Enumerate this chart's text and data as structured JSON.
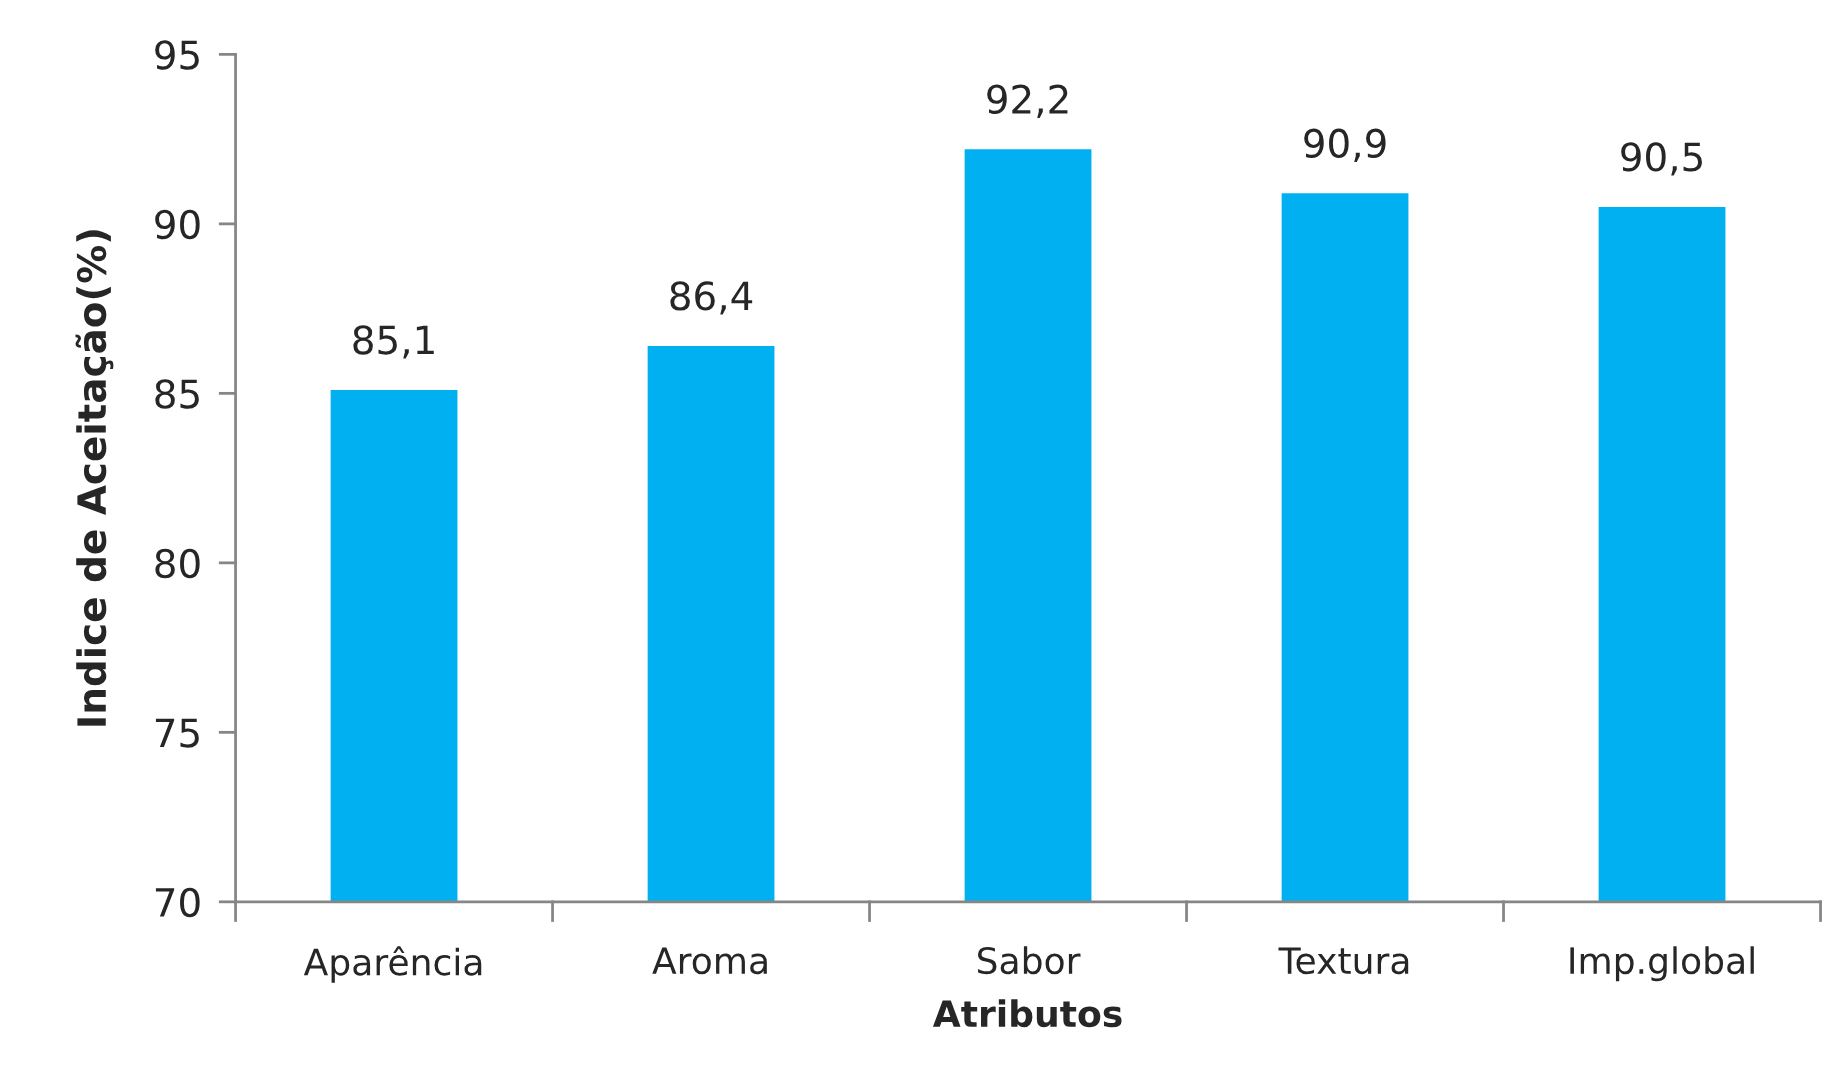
{
  "chart_data": {
    "type": "bar",
    "categories": [
      "Aparência",
      "Aroma",
      "Sabor",
      "Textura",
      "Imp.global"
    ],
    "values": [
      85.1,
      86.4,
      92.2,
      90.9,
      90.5
    ],
    "value_labels": [
      "85,1",
      "86,4",
      "92,2",
      "90,9",
      "90,5"
    ],
    "color": "#00b0f0",
    "xlabel": "Atributos",
    "ylabel": "Indice de Aceitação(%)",
    "ylim": [
      70,
      95
    ],
    "yticks": [
      70,
      75,
      80,
      85,
      90,
      95
    ]
  }
}
